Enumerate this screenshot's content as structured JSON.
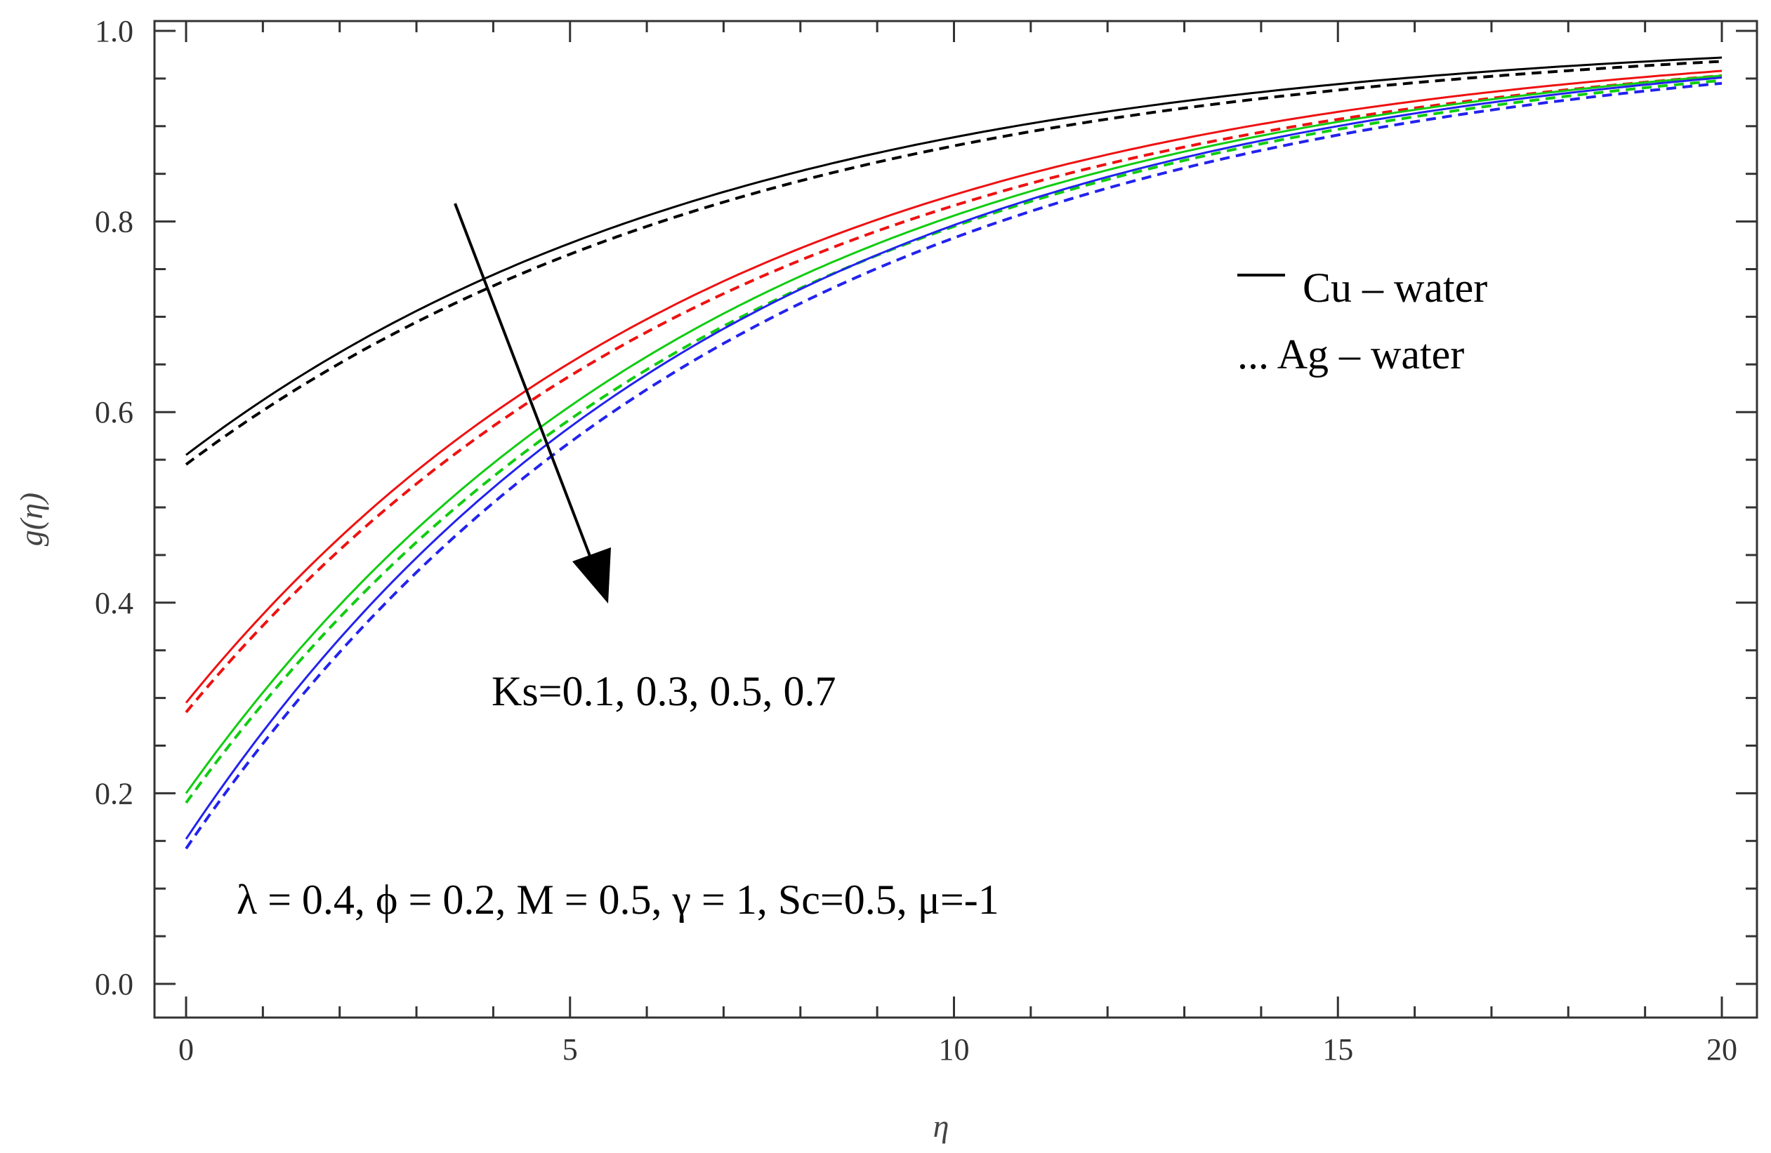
{
  "chart_data": {
    "type": "line",
    "title": "",
    "xlabel": "η",
    "ylabel": "g(η)",
    "xlim": [
      0,
      20
    ],
    "ylim": [
      0,
      1
    ],
    "x_ticks": [
      "0",
      "5",
      "10",
      "15",
      "20"
    ],
    "y_ticks": [
      "0.0",
      "0.2",
      "0.4",
      "0.6",
      "0.8",
      "1.0"
    ],
    "grid": false,
    "legend": {
      "placement": "upper-right",
      "entries": [
        {
          "label": "Cu – water",
          "style": "solid"
        },
        {
          "label": "... Ag – water",
          "style": "dashed"
        }
      ]
    },
    "annotations": {
      "ks_label": "Ks=0.1, 0.3, 0.5, 0.7",
      "params_label": "λ = 0.4, ϕ = 0.2, M = 0.5, γ = 1, Sc=0.5, μ=-1"
    },
    "series": [
      {
        "ks": 0.1,
        "fluid": "Cu-water",
        "style": "solid",
        "color": "#000000",
        "g0": 0.555,
        "g20": 0.972
      },
      {
        "ks": 0.1,
        "fluid": "Ag-water",
        "style": "dashed",
        "color": "#000000",
        "g0": 0.545,
        "g20": 0.968
      },
      {
        "ks": 0.3,
        "fluid": "Cu-water",
        "style": "solid",
        "color": "#ee1111",
        "g0": 0.295,
        "g20": 0.958
      },
      {
        "ks": 0.3,
        "fluid": "Ag-water",
        "style": "dashed",
        "color": "#ee1111",
        "g0": 0.285,
        "g20": 0.953
      },
      {
        "ks": 0.5,
        "fluid": "Cu-water",
        "style": "solid",
        "color": "#11cc11",
        "g0": 0.2,
        "g20": 0.953
      },
      {
        "ks": 0.5,
        "fluid": "Ag-water",
        "style": "dashed",
        "color": "#11cc11",
        "g0": 0.19,
        "g20": 0.948
      },
      {
        "ks": 0.7,
        "fluid": "Cu-water",
        "style": "solid",
        "color": "#2222ee",
        "g0": 0.152,
        "g20": 0.951
      },
      {
        "ks": 0.7,
        "fluid": "Ag-water",
        "style": "dashed",
        "color": "#2222ee",
        "g0": 0.142,
        "g20": 0.945
      }
    ]
  }
}
